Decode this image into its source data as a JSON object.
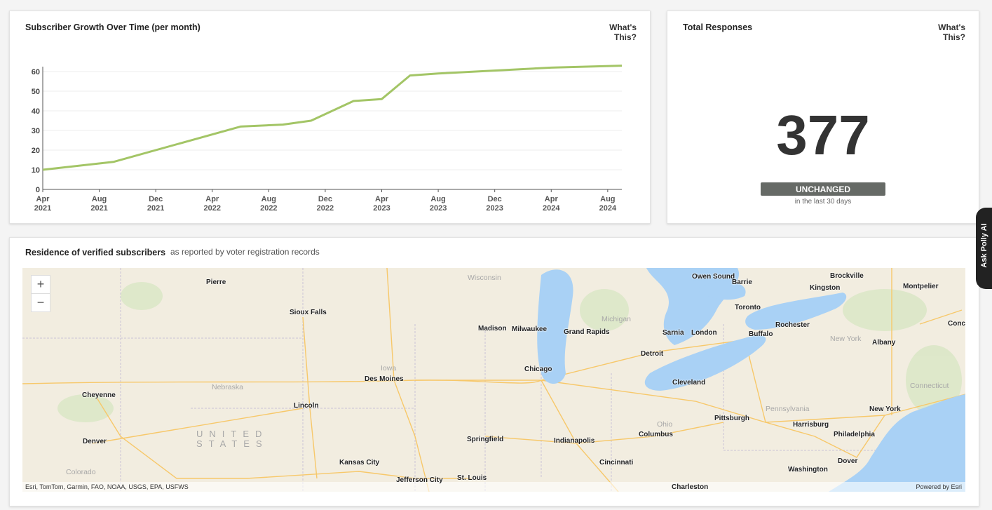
{
  "chart_data": {
    "type": "line",
    "title": "Subscriber Growth Over Time (per month)",
    "x": [
      "2021-04",
      "2021-09",
      "2022-06",
      "2022-09",
      "2022-11",
      "2023-02",
      "2023-04",
      "2023-06",
      "2023-08",
      "2024-04",
      "2024-09"
    ],
    "series": [
      {
        "color": "#a3c566",
        "values": [
          10,
          14,
          32,
          33,
          35,
          45,
          46,
          58,
          59,
          62,
          63
        ]
      }
    ],
    "xlim": [
      "2021-04",
      "2024-09"
    ],
    "xticks": [
      {
        "value": "2021-04",
        "label": "Apr 2021"
      },
      {
        "value": "2021-08",
        "label": "Aug 2021"
      },
      {
        "value": "2021-12",
        "label": "Dec 2021"
      },
      {
        "value": "2022-04",
        "label": "Apr 2022"
      },
      {
        "value": "2022-08",
        "label": "Aug 2022"
      },
      {
        "value": "2022-12",
        "label": "Dec 2022"
      },
      {
        "value": "2023-04",
        "label": "Apr 2023"
      },
      {
        "value": "2023-08",
        "label": "Aug 2023"
      },
      {
        "value": "2023-12",
        "label": "Dec 2023"
      },
      {
        "value": "2024-04",
        "label": "Apr 2024"
      },
      {
        "value": "2024-08",
        "label": "Aug 2024"
      }
    ],
    "ylim": [
      0,
      62.5
    ],
    "yticks": [
      0,
      10,
      20,
      30,
      40,
      50,
      60
    ],
    "grid": true
  },
  "growth_card": {
    "help": "What's This?"
  },
  "responses_card": {
    "title": "Total Responses",
    "help": "What's This?",
    "value": 377,
    "status": "UNCHANGED",
    "period": "in the last 30 days"
  },
  "map_card": {
    "title": "Residence of verified subscribers",
    "subtitle": "as reported by voter registration records",
    "zoom_in": "+",
    "zoom_out": "−",
    "labels": [
      "Pierre",
      "Sioux Falls",
      "Wisconsin",
      "Madison",
      "Milwaukee",
      "Grand Rapids",
      "Michigan",
      "Owen Sound",
      "Barrie",
      "Brockville",
      "Kingston",
      "Montpelier",
      "Toronto",
      "Rochester",
      "Buffalo",
      "Concord",
      "Sarnia",
      "London",
      "New York",
      "Albany",
      "Detroit",
      "Chicago",
      "Iowa",
      "Des Moines",
      "Nebraska",
      "Cleveland",
      "Connecticut",
      "Cheyenne",
      "Lincoln",
      "Pennsylvania",
      "New York",
      "Pittsburgh",
      "Ohio",
      "Harrisburg",
      "Philadelphia",
      "Columbus",
      "Springfield",
      "Indianapolis",
      "Denver",
      "UNITED STATES",
      "Colorado",
      "Kansas City",
      "Cincinnati",
      "Washington",
      "Dover",
      "Jefferson City",
      "St. Louis",
      "Charleston"
    ],
    "attribution": "Esri, TomTom, Garmin, FAO, NOAA, USGS, EPA, USFWS",
    "powered_by": "Powered by Esri"
  },
  "side_tab": "Ask Polly AI"
}
